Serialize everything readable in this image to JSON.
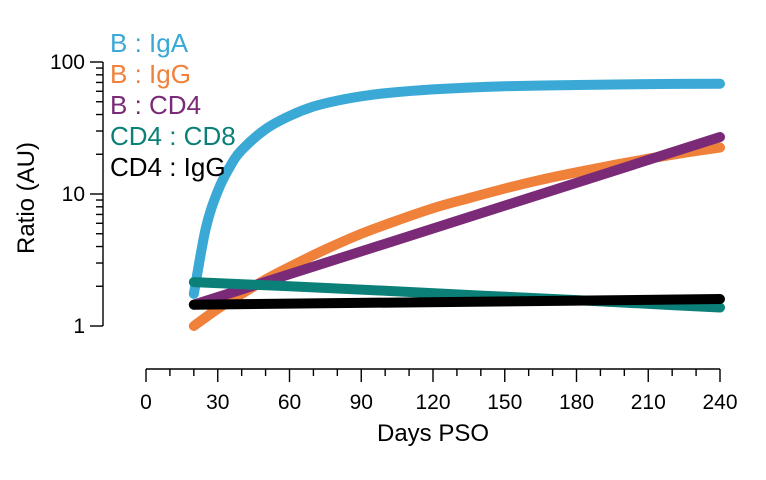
{
  "chart_data": {
    "type": "line",
    "title": "",
    "xlabel": "Days PSO",
    "ylabel": "Ratio (AU)",
    "x_scale": "linear",
    "y_scale": "log",
    "xlim": [
      0,
      240
    ],
    "ylim": [
      1,
      100
    ],
    "x_ticks": [
      0,
      30,
      60,
      90,
      120,
      150,
      180,
      210,
      240
    ],
    "x_tick_labels": [
      "0",
      "30",
      "60",
      "90",
      "120",
      "150",
      "180",
      "210",
      "240"
    ],
    "y_ticks": [
      1,
      10,
      100
    ],
    "y_tick_labels": [
      "1",
      "10",
      "100"
    ],
    "grid": false,
    "legend_position": "top-left",
    "series": [
      {
        "name": "B : IgA",
        "color": "#3aa9d6",
        "x": [
          20,
          25,
          30,
          35,
          40,
          50,
          60,
          70,
          80,
          90,
          100,
          120,
          150,
          180,
          210,
          240
        ],
        "y": [
          1.75,
          5.5,
          10.5,
          16,
          21.5,
          31,
          39,
          46,
          51,
          55,
          58,
          62,
          65.5,
          67,
          68,
          68.5
        ]
      },
      {
        "name": "B : IgG",
        "color": "#f0813a",
        "x": [
          20,
          30,
          40,
          50,
          60,
          75,
          90,
          105,
          120,
          135,
          150,
          165,
          180,
          195,
          210,
          225,
          240
        ],
        "y": [
          1.0,
          1.35,
          1.75,
          2.25,
          2.8,
          3.8,
          5.0,
          6.3,
          7.8,
          9.3,
          11.0,
          12.8,
          14.6,
          16.5,
          18.5,
          20.5,
          22.5
        ]
      },
      {
        "name": "B : CD4",
        "color": "#7b2a78",
        "x": [
          20,
          240
        ],
        "y": [
          1.45,
          27
        ]
      },
      {
        "name": "CD4 : CD8",
        "color": "#0b8078",
        "x": [
          20,
          60,
          100,
          140,
          180,
          220,
          240
        ],
        "y": [
          2.15,
          2.0,
          1.85,
          1.7,
          1.57,
          1.44,
          1.38
        ]
      },
      {
        "name": "CD4 : IgG",
        "color": "#000000",
        "x": [
          20,
          240
        ],
        "y": [
          1.45,
          1.6
        ]
      }
    ]
  }
}
